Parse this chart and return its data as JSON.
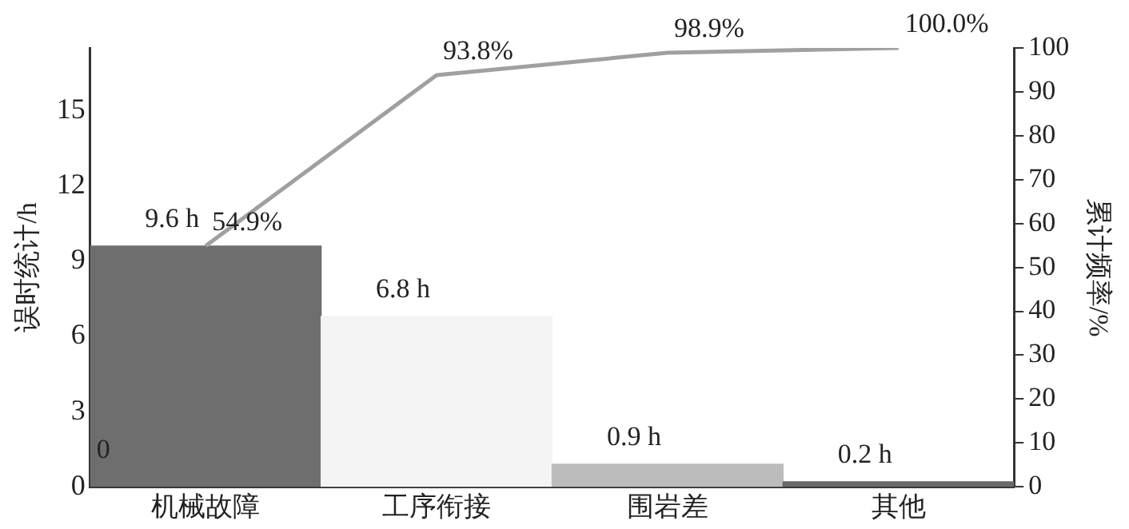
{
  "chart_data": {
    "type": "bar",
    "categories": [
      "机械故障",
      "工序衔接",
      "围岩差",
      "其他"
    ],
    "ylabel": "误时统计/h",
    "y2label": "累计频率/%",
    "ylim": [
      0,
      17.5
    ],
    "yticks": [
      0,
      3,
      6,
      9,
      12,
      15
    ],
    "y2lim": [
      0,
      100
    ],
    "y2ticks": [
      0,
      10,
      20,
      30,
      40,
      50,
      60,
      70,
      80,
      90,
      100
    ],
    "grid": false,
    "legend": false,
    "series": [
      {
        "values": [
          9.6,
          6.8,
          0.9,
          0.2
        ],
        "colors": [
          "#6e6e6e",
          "#f4f4f4",
          "#bcbcbc",
          "#6a6a6a"
        ],
        "value_labels": [
          "9.6 h",
          "6.8 h",
          "0.9 h",
          "0.2 h"
        ]
      },
      {
        "type": "line",
        "axis": "y2",
        "values": [
          54.9,
          93.8,
          98.9,
          100
        ],
        "color": "#a0a0a0",
        "marker": "none",
        "line_style": "solid",
        "value_labels": [
          "54.9%",
          "93.8%",
          "98.9%",
          "100.0%"
        ]
      }
    ],
    "annotations": [
      "0"
    ]
  }
}
